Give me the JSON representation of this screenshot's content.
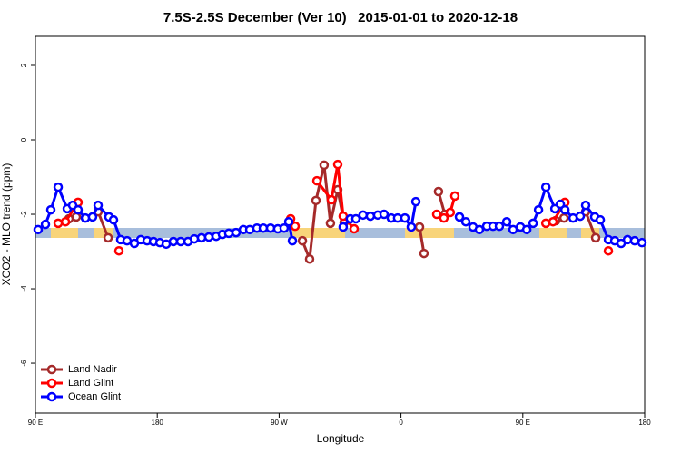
{
  "chart_data": {
    "type": "line",
    "title": "7.5S-2.5S December (Ver 10)   2015-01-01 to 2020-12-18",
    "x_label": "Longitude",
    "y_label": "XCO2 - MLO trend (ppm)",
    "xlim": [
      90,
      540
    ],
    "ylim": [
      -7.34,
      2.78
    ],
    "xticks": [
      {
        "value": 90,
        "label": "90 E"
      },
      180,
      {
        "value": 270,
        "label": "90 W"
      },
      {
        "value": 360,
        "label": "0"
      },
      {
        "value": 450,
        "label": "90 E"
      },
      {
        "value": 540,
        "label": "180"
      }
    ],
    "yticks": [
      2,
      0,
      -2,
      -4,
      -6
    ],
    "grid": false,
    "legend": "bottom-left",
    "series": [
      {
        "name": "Land Nadir",
        "color": "#a52a2a",
        "x": [
          114.8,
          120.2,
          null,
          136.3,
          143.7,
          null,
          287.2,
          292.5,
          297.2,
          303.2,
          307.9,
          313.3,
          318.0,
          null,
          373.7,
          377.0,
          null,
          387.7,
          392.4,
          null,
          474.3,
          480.4,
          null,
          496.4,
          503.8
        ],
        "values": [
          -2.12,
          -2.07,
          null,
          -1.93,
          -2.63,
          null,
          -2.71,
          -3.2,
          -1.63,
          -0.68,
          -2.24,
          -1.34,
          -2.22,
          null,
          -2.34,
          -3.05,
          null,
          -1.39,
          -2.0,
          null,
          -2.17,
          -2.1,
          null,
          -1.93,
          -2.63
        ]
      },
      {
        "name": "Land Glint",
        "color": "#ff0000",
        "x": [
          106.8,
          112.2,
          121.5,
          null,
          151.7,
          null,
          278.5,
          281.8,
          null,
          297.9,
          308.6,
          313.3,
          317.3,
          325.4,
          null,
          386.4,
          391.7,
          396.4,
          399.8,
          null,
          467.0,
          472.3,
          481.1,
          null,
          513.2
        ],
        "values": [
          -2.24,
          -2.2,
          -1.68,
          null,
          -2.98,
          null,
          -2.12,
          -2.32,
          null,
          -1.1,
          -1.61,
          -0.66,
          -2.05,
          -2.39,
          null,
          -2.0,
          -2.1,
          -1.95,
          -1.51,
          null,
          -2.24,
          -2.2,
          -1.68,
          null,
          -2.98
        ]
      },
      {
        "name": "Ocean Glint",
        "color": "#0000ff",
        "x": [
          92.0,
          97.4,
          101.4,
          106.8,
          113.5,
          117.5,
          121.5,
          126.9,
          132.2,
          136.3,
          144.3,
          147.7,
          153.0,
          157.7,
          163.1,
          167.8,
          172.5,
          177.2,
          181.9,
          186.6,
          191.9,
          197.3,
          202.7,
          207.4,
          212.7,
          218.1,
          223.5,
          228.1,
          232.8,
          238.2,
          243.6,
          248.3,
          253.6,
          258.3,
          263.7,
          269.0,
          273.7,
          277.1,
          279.8,
          null,
          317.3,
          322.6,
          326.7,
          332.0,
          337.4,
          342.8,
          347.5,
          352.8,
          357.5,
          362.9,
          367.6,
          371.0,
          null,
          403.2,
          407.9,
          413.2,
          417.9,
          423.3,
          428.0,
          432.7,
          438.1,
          442.8,
          448.2,
          452.9,
          457.6,
          461.6,
          467.0,
          473.7,
          477.7,
          481.1,
          487.1,
          492.4,
          496.4,
          503.1,
          507.2,
          513.2,
          517.9,
          522.6,
          527.3,
          532.6,
          538.0
        ],
        "values": [
          -2.41,
          -2.27,
          -1.88,
          -1.27,
          -1.85,
          -1.76,
          -1.88,
          -2.1,
          -2.07,
          -1.76,
          -2.07,
          -2.15,
          -2.68,
          -2.71,
          -2.78,
          -2.68,
          -2.71,
          -2.73,
          -2.76,
          -2.8,
          -2.73,
          -2.73,
          -2.73,
          -2.66,
          -2.63,
          -2.61,
          -2.59,
          -2.54,
          -2.51,
          -2.49,
          -2.41,
          -2.41,
          -2.37,
          -2.37,
          -2.37,
          -2.39,
          -2.37,
          -2.2,
          -2.71,
          null,
          -2.34,
          -2.12,
          -2.12,
          -2.02,
          -2.05,
          -2.02,
          -2.0,
          -2.1,
          -2.1,
          -2.1,
          -2.34,
          -1.66,
          null,
          -2.07,
          -2.2,
          -2.34,
          -2.41,
          -2.32,
          -2.32,
          -2.32,
          -2.2,
          -2.41,
          -2.34,
          -2.41,
          -2.24,
          -1.88,
          -1.27,
          -1.85,
          -1.73,
          -1.88,
          -2.1,
          -2.05,
          -1.76,
          -2.07,
          -2.15,
          -2.68,
          -2.71,
          -2.78,
          -2.68,
          -2.71,
          -2.76
        ]
      }
    ]
  }
}
